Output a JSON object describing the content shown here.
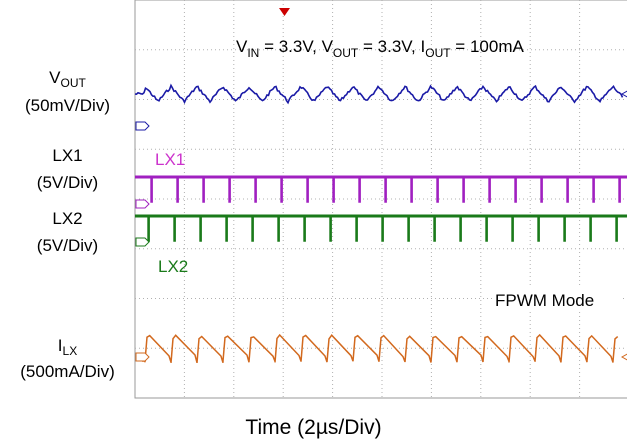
{
  "chart_data": {
    "type": "line",
    "xlabel": "Time (2µs/Div)",
    "conditions": {
      "vin_sym": "V",
      "vin_sub": "IN",
      "vin_rest": " = 3.3V, ",
      "vout_sym": "V",
      "vout_sub": "OUT",
      "vout_rest": " = 3.3V, ",
      "iout_sym": "I",
      "iout_sub": "OUT",
      "iout_rest": " = 100mA"
    },
    "mode_note": "FPWM Mode",
    "x_divisions": 10,
    "y_divisions": 8,
    "switching_cycles_visible": 19,
    "channels": [
      {
        "id": "vout",
        "name_main": "V",
        "name_sub": "OUT",
        "scale": "(50mV/Div)",
        "color": "#1a1aa6",
        "shape": "triangle ripple",
        "ripple_peak_to_peak_div": 0.3
      },
      {
        "id": "lx1",
        "name_main": "LX1",
        "name_sub": "",
        "scale": "(5V/Div)",
        "trace_label": "LX1",
        "color": "#a020c0",
        "shape": "pulse high, dips low each cycle"
      },
      {
        "id": "lx2",
        "name_main": "LX2",
        "name_sub": "",
        "scale": "(5V/Div)",
        "trace_label": "LX2",
        "color": "#1a7a1a",
        "shape": "pulse high, dips low each cycle"
      },
      {
        "id": "ilx",
        "name_main": "I",
        "name_sub": "LX",
        "scale": "(500mA/Div)",
        "color": "#d2691e",
        "shape": "triangle ripple with edges",
        "ripple_peak_to_peak_div": 0.6
      }
    ]
  }
}
